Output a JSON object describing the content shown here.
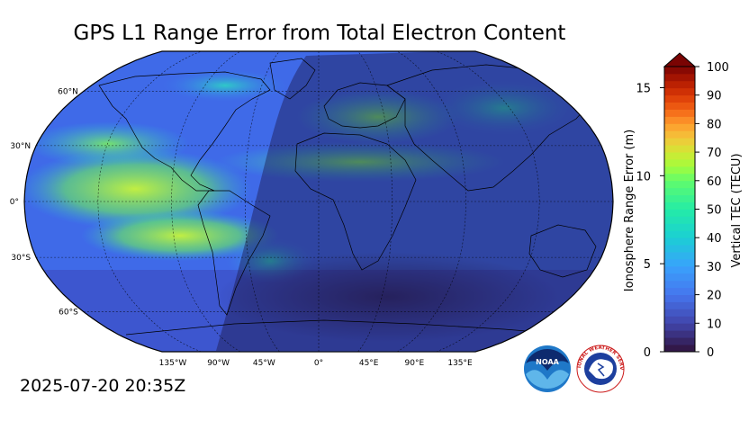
{
  "title": "GPS L1 Range Error from Total Electron Content",
  "timestamp": "2025-07-20 20:35Z",
  "map": {
    "projection": "Robinson",
    "lat_labels": [
      "60°N",
      "30°N",
      "0°",
      "30°S",
      "60°S"
    ],
    "lon_labels": [
      "135°W",
      "90°W",
      "45°W",
      "0°",
      "45°E",
      "90°E",
      "135°E"
    ],
    "overlay": "night-side shading"
  },
  "colorbar": {
    "left_label": "Ionosphere Range Error (m)",
    "right_label": "Vertical TEC (TECU)",
    "left_ticks": [
      "0",
      "5",
      "10",
      "15"
    ],
    "right_ticks": [
      "0",
      "10",
      "20",
      "30",
      "40",
      "50",
      "60",
      "70",
      "80",
      "90",
      "100"
    ],
    "colormap": "turbo",
    "extend": "max"
  },
  "logos": {
    "noaa": "NOAA",
    "nws": "NATIONAL WEATHER SERVICE"
  },
  "colors": {
    "low": "#30123b",
    "mid": "#a4fc3c",
    "high": "#7a0403"
  }
}
